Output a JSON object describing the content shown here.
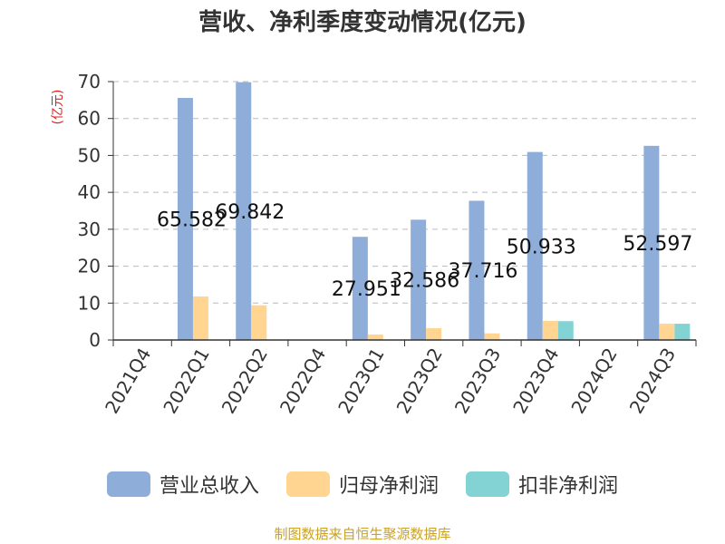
{
  "title": "营收、净利季度变动情况(亿元)",
  "source": "制图数据来自恒生聚源数据库",
  "chart_data": {
    "type": "bar",
    "categories": [
      "2021Q4",
      "2022Q1",
      "2022Q2",
      "2022Q4",
      "2023Q1",
      "2023Q2",
      "2023Q3",
      "2023Q4",
      "2024Q2",
      "2024Q3"
    ],
    "ylabel": "(亿元)",
    "ylim": [
      0,
      70
    ],
    "yticks": [
      0,
      10,
      20,
      30,
      40,
      50,
      60,
      70
    ],
    "grid": true,
    "legend_position": "bottom",
    "series": [
      {
        "name": "营业总收入",
        "color": "#8eadd9",
        "values": [
          null,
          65.582,
          69.842,
          null,
          27.951,
          32.586,
          37.716,
          50.933,
          null,
          52.597
        ]
      },
      {
        "name": "归母净利润",
        "color": "#ffd591",
        "values": [
          null,
          11.8,
          9.4,
          null,
          1.5,
          3.2,
          1.8,
          5.2,
          null,
          4.4
        ]
      },
      {
        "name": "扣非净利润",
        "color": "#83d3d5",
        "values": [
          null,
          null,
          null,
          null,
          null,
          null,
          null,
          5.1,
          null,
          4.4
        ]
      }
    ],
    "data_labels": [
      {
        "category": "2022Q1",
        "text": "65.582"
      },
      {
        "category": "2022Q2",
        "text": "69.842"
      },
      {
        "category": "2023Q1",
        "text": "27.951"
      },
      {
        "category": "2023Q2",
        "text": "32.586"
      },
      {
        "category": "2023Q3",
        "text": "37.716"
      },
      {
        "category": "2023Q4",
        "text": "50.933"
      },
      {
        "category": "2024Q3",
        "text": "52.597"
      }
    ]
  }
}
